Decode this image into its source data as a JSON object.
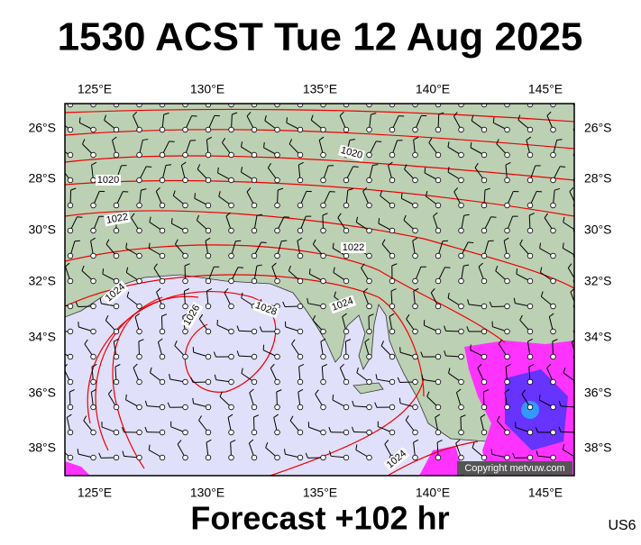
{
  "header": {
    "title": "1530 ACST Tue 12 Aug 2025"
  },
  "map": {
    "lon_labels": [
      "125°E",
      "130°E",
      "135°E",
      "140°E",
      "145°E"
    ],
    "lat_labels": [
      "26°S",
      "28°S",
      "30°S",
      "32°S",
      "34°S",
      "36°S",
      "38°S"
    ],
    "isobar_labels": [
      "1020",
      "1020",
      "1022",
      "1022",
      "1024",
      "1024",
      "1024",
      "1026",
      "1028"
    ],
    "copyright": "Copyright metvuw.com"
  },
  "footer": {
    "forecast": "Forecast +102 hr",
    "code": "US6"
  }
}
